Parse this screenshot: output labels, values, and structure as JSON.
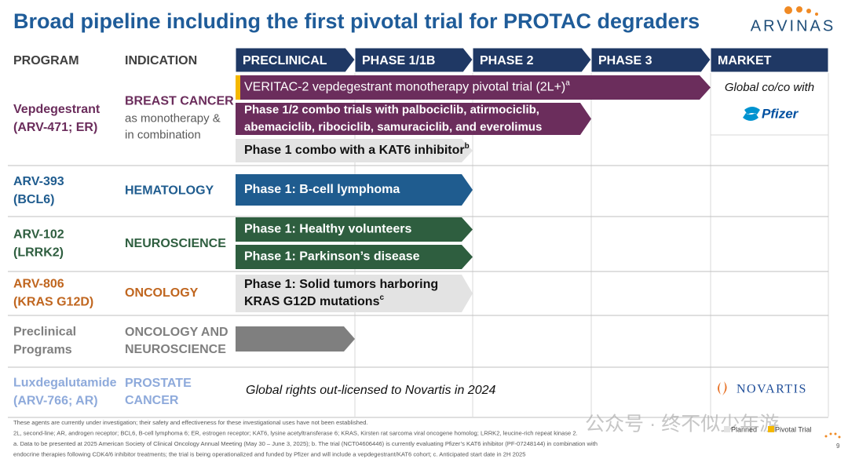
{
  "header": {
    "title": "Broad pipeline including the first pivotal trial for PROTAC degraders",
    "logo": "ARVINAS"
  },
  "columns": {
    "program": "PROGRAM",
    "indication": "INDICATION",
    "phases": [
      "PRECLINICAL",
      "PHASE 1/1B",
      "PHASE 2",
      "PHASE 3",
      "MARKET"
    ]
  },
  "rows": [
    {
      "program": [
        "Vepdegestrant",
        "(ARV-471; ER)"
      ],
      "indication": [
        "BREAST CANCER"
      ],
      "indication_note": [
        "as monotherapy &",
        "in combination"
      ],
      "market": "Global co/co with",
      "partner": "Pfizer",
      "color": "#6b2d5c",
      "bars": [
        {
          "lines": [
            "VERITAC-2 vepdegestrant monotherapy pivotal trial (2L+)"
          ],
          "sup": "a"
        },
        {
          "lines": [
            "Phase 1/2 combo trials with palbociclib, atirmociclib,",
            "abemaciclib, ribociclib, samuraciclib, and everolimus"
          ]
        },
        {
          "lines": [
            "Phase 1 combo with a KAT6 inhibitor"
          ],
          "sup": "b"
        }
      ]
    },
    {
      "program": [
        "ARV-393",
        "(BCL6)"
      ],
      "indication": [
        "HEMATOLOGY"
      ],
      "color": "#1f5c8f",
      "bars": [
        {
          "lines": [
            "Phase 1: B-cell lymphoma"
          ]
        }
      ]
    },
    {
      "program": [
        "ARV-102",
        "(LRRK2)"
      ],
      "indication": [
        "NEUROSCIENCE"
      ],
      "color": "#2e5e3f",
      "bars": [
        {
          "lines": [
            "Phase 1: Healthy volunteers"
          ]
        },
        {
          "lines": [
            "Phase 1: Parkinson’s disease"
          ]
        }
      ]
    },
    {
      "program": [
        "ARV-806",
        "(KRAS G12D)"
      ],
      "indication": [
        "ONCOLOGY"
      ],
      "color": "#c0661f",
      "bars": [
        {
          "lines": [
            "Phase 1: Solid tumors harboring",
            "KRAS G12D mutations"
          ],
          "sup": "c"
        }
      ]
    },
    {
      "program": [
        "Preclinical",
        "Programs"
      ],
      "indication": [
        "ONCOLOGY AND",
        "NEUROSCIENCE"
      ],
      "color": "#7f7f7f",
      "bars": [
        {
          "lines": []
        }
      ]
    },
    {
      "program": [
        "Luxdegalutamide",
        "(ARV-766; AR)"
      ],
      "indication": [
        "PROSTATE",
        "CANCER"
      ],
      "note": "Global rights out-licensed to Novartis in 2024",
      "partner": "NOVARTIS",
      "color": "#8eaadb",
      "bars": []
    }
  ],
  "footnotes": [
    "These agents are currently under investigation; their safety and effectiveness for these investigational uses have not been established.",
    "2L, second-line; AR, androgen receptor; BCL6, B-cell lymphoma 6; ER, estrogen receptor; KAT6, lysine acetyltransferase 6; KRAS, Kirsten rat sarcoma viral oncogene homolog; LRRK2, leucine-rich repeat kinase 2.",
    "a. Data to be presented at 2025 American Society of Clinical Oncology Annual Meeting (May 30 – June 3, 2025); b. The trial (NCT04606446) is currently evaluating Pfizer’s KAT6 inhibitor (PF-07248144) in combination with",
    "endocrine therapies following CDK4/6 inhibitor treatments; the trial is being operationalized and funded by Pfizer and will include a vepdegestrant/KAT6 cohort; c. Anticipated start date in 2H 2025"
  ],
  "legend": [
    "Planned",
    "Pivotal Trial"
  ],
  "page": "9",
  "watermark": "公众号 · 终不似少年游"
}
